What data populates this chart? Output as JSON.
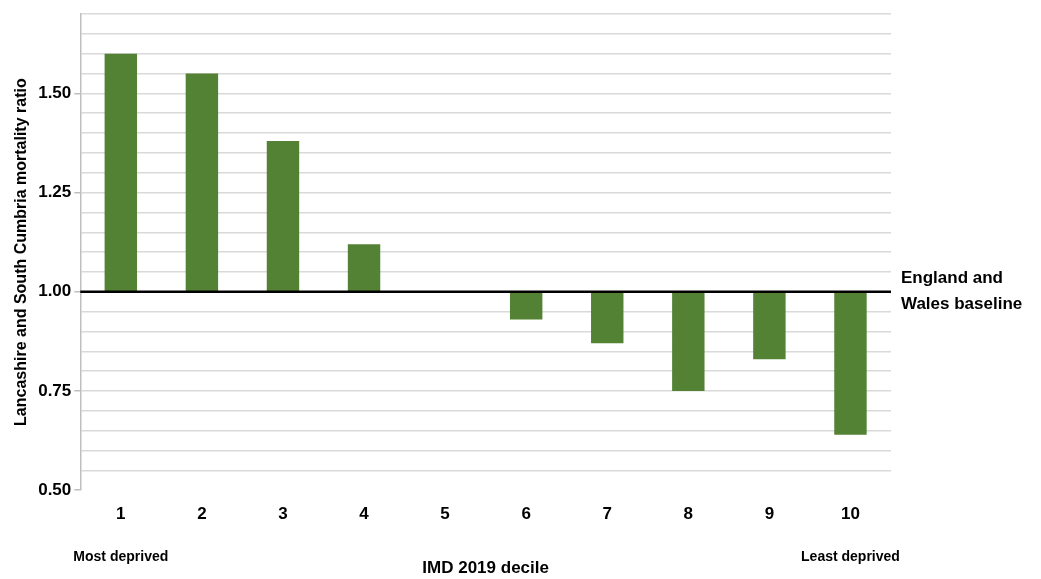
{
  "chart_data": {
    "type": "bar",
    "xlabel": "IMD 2019 decile",
    "ylabel": "Lancashire and South Cumbria mortality ratio",
    "categories": [
      "1",
      "2",
      "3",
      "4",
      "5",
      "6",
      "7",
      "8",
      "9",
      "10"
    ],
    "base": [
      1,
      1,
      1,
      1,
      null,
      1,
      1,
      1,
      1,
      1
    ],
    "values": [
      0.6,
      0.55,
      0.38,
      0.12,
      null,
      -0.07,
      -0.13,
      -0.25,
      -0.17,
      -0.36
    ],
    "color": "#548235",
    "ylim": [
      0.5,
      1.7
    ],
    "yticks": [
      {
        "value": 0.5,
        "label": "0.50"
      },
      {
        "value": 0.55,
        "label": null
      },
      {
        "value": 0.6,
        "label": null
      },
      {
        "value": 0.65,
        "label": null
      },
      {
        "value": 0.7,
        "label": null
      },
      {
        "value": 0.75,
        "label": "0.75"
      },
      {
        "value": 0.8,
        "label": null
      },
      {
        "value": 0.85,
        "label": null
      },
      {
        "value": 0.9,
        "label": null
      },
      {
        "value": 0.95,
        "label": null
      },
      {
        "value": 1.0,
        "label": "1.00"
      },
      {
        "value": 1.05,
        "label": null
      },
      {
        "value": 1.1,
        "label": null
      },
      {
        "value": 1.15,
        "label": null
      },
      {
        "value": 1.2,
        "label": null
      },
      {
        "value": 1.25,
        "label": "1.25"
      },
      {
        "value": 1.3,
        "label": null
      },
      {
        "value": 1.35,
        "label": null
      },
      {
        "value": 1.4,
        "label": null
      },
      {
        "value": 1.45,
        "label": null
      },
      {
        "value": 1.5,
        "label": "1.50"
      },
      {
        "value": 1.55,
        "label": null
      },
      {
        "value": 1.6,
        "label": null
      },
      {
        "value": 1.65,
        "label": null
      },
      {
        "value": 1.7,
        "label": null
      }
    ],
    "grid": "y",
    "ref_lines": [
      {
        "axis": "y",
        "value": 1.0,
        "label": "England and Wales baseline",
        "color": "#000000"
      }
    ],
    "annotations": [
      "Most deprived",
      "Least deprived"
    ]
  }
}
